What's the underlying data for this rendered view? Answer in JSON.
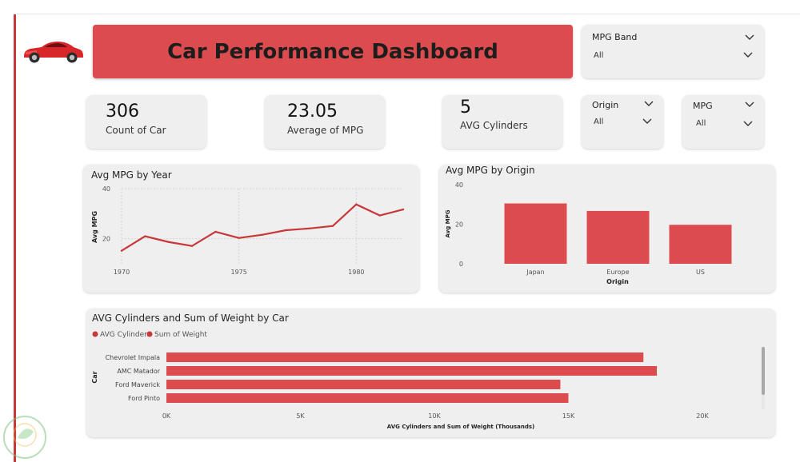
{
  "header": {
    "title": "Car Performance Dashboard",
    "car_icon": "red-car-icon"
  },
  "kpis": [
    {
      "value": "306",
      "label": "Count of Car"
    },
    {
      "value": "23.05",
      "label": "Average of MPG"
    },
    {
      "value": "5",
      "label": "AVG Cylinders"
    }
  ],
  "slicers": {
    "mpg_band": {
      "title": "MPG Band",
      "value": "All"
    },
    "origin": {
      "title": "Origin",
      "value": "All"
    },
    "mpg": {
      "title": "MPG",
      "value": "All"
    }
  },
  "colors": {
    "accent": "#dc4c4e",
    "line": "#c8383a",
    "card": "#efefef"
  },
  "chart_data": [
    {
      "type": "line",
      "title": "Avg MPG by Year",
      "xlabel": "",
      "ylabel": "Avg MPG",
      "x": [
        1970,
        1971,
        1972,
        1973,
        1974,
        1975,
        1976,
        1977,
        1978,
        1979,
        1980,
        1981,
        1982
      ],
      "y": [
        15.2,
        21.0,
        18.7,
        17.1,
        22.8,
        20.3,
        21.6,
        23.4,
        24.1,
        25.1,
        33.7,
        29.3,
        31.7
      ],
      "x_ticks": [
        "1970",
        "1975",
        "1980"
      ],
      "y_ticks": [
        "20",
        "40"
      ],
      "xlim": [
        1970,
        1982
      ],
      "ylim": [
        10,
        40
      ],
      "grid": true
    },
    {
      "type": "bar",
      "title": "Avg MPG by Origin",
      "xlabel": "Origin",
      "ylabel": "Avg MPG",
      "categories": [
        "Japan",
        "Europe",
        "US"
      ],
      "values": [
        30.5,
        26.7,
        19.7
      ],
      "y_ticks": [
        "0",
        "20",
        "40"
      ],
      "ylim": [
        0,
        40
      ]
    },
    {
      "type": "bar",
      "orientation": "horizontal",
      "title": "AVG Cylinders and Sum of Weight by Car",
      "xlabel": "AVG Cylinders and Sum of Weight (Thousands)",
      "ylabel": "Car",
      "legend": [
        "AVG Cylinders",
        "Sum of Weight"
      ],
      "legend_position": "top-left",
      "categories": [
        "Chevrolet Impala",
        "AMC Matador",
        "Ford Maverick",
        "Ford Pinto"
      ],
      "values": [
        17800,
        18300,
        14700,
        15000
      ],
      "x_ticks": [
        "0K",
        "5K",
        "10K",
        "15K",
        "20K"
      ],
      "xlim": [
        0,
        20000
      ]
    }
  ]
}
